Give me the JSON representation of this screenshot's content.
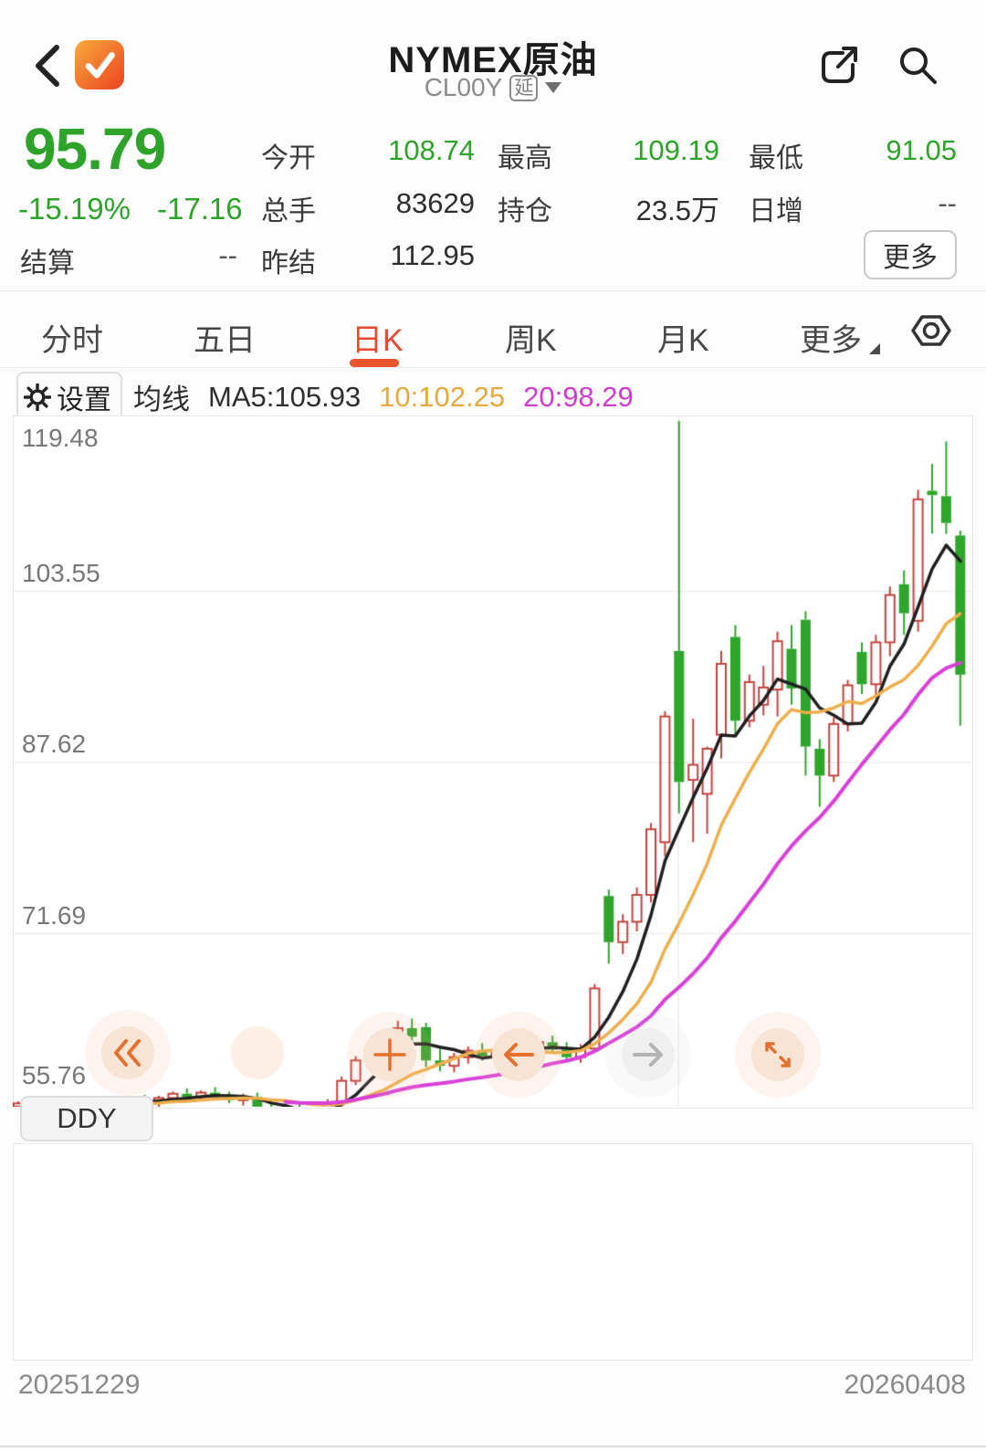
{
  "header": {
    "title": "NYMEX原油",
    "code": "CL00Y",
    "code_badge": "延",
    "icons": [
      "back-chevron",
      "app-logo-check",
      "share",
      "search"
    ]
  },
  "quote": {
    "last_price": "95.79",
    "change_percent": "-15.19%",
    "change_value": "-17.16",
    "price_color": "#2da32a",
    "fields": {
      "settle_label": "结算",
      "settle_value": "--",
      "open_label": "今开",
      "open_value": "108.74",
      "high_label": "最高",
      "high_value": "109.19",
      "low_label": "最低",
      "low_value": "91.05",
      "volume_label": "总手",
      "volume_value": "83629",
      "open_interest_label": "持仓",
      "open_interest_value": "23.5万",
      "daily_increase_label": "日增",
      "daily_increase_value": "--",
      "prev_settle_label": "昨结",
      "prev_settle_value": "112.95"
    },
    "more_button": "更多"
  },
  "tabs": {
    "items": [
      {
        "label": "分时",
        "active": false
      },
      {
        "label": "五日",
        "active": false
      },
      {
        "label": "日K",
        "active": true
      },
      {
        "label": "周K",
        "active": false
      },
      {
        "label": "月K",
        "active": false
      },
      {
        "label": "更多",
        "active": false
      }
    ],
    "active_color": "#e8492e",
    "right_icon": "hex-nut-settings"
  },
  "ma_bar": {
    "settings_button": "设置",
    "group_label": "均线",
    "ma5_text": "MA5:105.93",
    "ma10_text": "10:102.25",
    "ma20_text": "20:98.29"
  },
  "chart_data": {
    "type": "candlestick",
    "title": "NYMEX原油 日K",
    "x_start_date": "20251229",
    "x_end_date": "20260408",
    "ylim": [
      55.76,
      119.48
    ],
    "y_ticks": [
      "119.48",
      "103.55",
      "87.62",
      "71.69",
      "55.76"
    ],
    "grid": true,
    "up_style": {
      "color": "#c5433c",
      "fill": "hollow",
      "meaning": "up day (red)"
    },
    "down_style": {
      "color": "#2ea52b",
      "fill": "solid",
      "meaning": "down day (green)"
    },
    "ma_lines": [
      {
        "name": "MA5",
        "period": 5,
        "last_value": 105.93,
        "color": "#1f1f1f",
        "width": 3.5
      },
      {
        "name": "MA10",
        "period": 10,
        "last_value": 102.25,
        "color": "#efae4a",
        "width": 3.5
      },
      {
        "name": "MA20",
        "period": 20,
        "last_value": 98.29,
        "color": "#da3fda",
        "width": 4
      }
    ],
    "candle_format": [
      "open",
      "high",
      "low",
      "close"
    ],
    "candles": [
      [
        55.6,
        56.1,
        55.2,
        55.9
      ],
      [
        55.9,
        56.3,
        55.5,
        55.7
      ],
      [
        55.7,
        56.2,
        55.3,
        56.0
      ],
      [
        56.0,
        56.5,
        55.6,
        55.8
      ],
      [
        55.8,
        56.2,
        55.1,
        55.5
      ],
      [
        55.5,
        56.0,
        55.0,
        55.8
      ],
      [
        55.8,
        56.4,
        55.4,
        56.1
      ],
      [
        56.1,
        56.6,
        55.7,
        55.9
      ],
      [
        55.9,
        56.4,
        55.5,
        56.2
      ],
      [
        56.2,
        56.7,
        55.8,
        56.0
      ],
      [
        56.0,
        56.6,
        55.6,
        56.4
      ],
      [
        56.4,
        57.0,
        56.0,
        56.8
      ],
      [
        56.8,
        57.3,
        56.2,
        56.5
      ],
      [
        56.5,
        57.1,
        56.1,
        56.9
      ],
      [
        56.9,
        57.4,
        56.4,
        56.6
      ],
      [
        56.6,
        57.0,
        55.9,
        56.2
      ],
      [
        56.2,
        56.8,
        55.7,
        56.5
      ],
      [
        56.5,
        56.9,
        55.3,
        55.6
      ],
      [
        55.6,
        56.1,
        54.4,
        54.8
      ],
      [
        54.8,
        55.8,
        54.3,
        55.4
      ],
      [
        55.4,
        55.9,
        53.8,
        54.2
      ],
      [
        54.2,
        55.6,
        53.7,
        55.3
      ],
      [
        55.3,
        56.3,
        54.8,
        56.0
      ],
      [
        56.0,
        58.4,
        55.7,
        58.0
      ],
      [
        58.0,
        60.3,
        57.6,
        59.9
      ],
      [
        59.9,
        61.4,
        59.3,
        60.9
      ],
      [
        60.9,
        61.9,
        60.1,
        61.4
      ],
      [
        61.4,
        63.6,
        60.8,
        62.9
      ],
      [
        62.9,
        63.8,
        61.5,
        62.1
      ],
      [
        63.0,
        63.4,
        59.3,
        59.9
      ],
      [
        59.9,
        61.0,
        58.9,
        59.4
      ],
      [
        59.4,
        60.6,
        58.8,
        60.2
      ],
      [
        60.2,
        61.2,
        59.6,
        60.8
      ],
      [
        60.8,
        61.5,
        59.9,
        60.3
      ],
      [
        60.3,
        61.1,
        59.7,
        60.7
      ],
      [
        60.7,
        61.8,
        60.2,
        61.4
      ],
      [
        61.4,
        62.3,
        60.7,
        61.0
      ],
      [
        61.0,
        61.9,
        60.4,
        61.6
      ],
      [
        61.6,
        62.2,
        60.6,
        60.9
      ],
      [
        60.9,
        61.6,
        59.8,
        60.2
      ],
      [
        60.2,
        61.4,
        59.7,
        61.0
      ],
      [
        61.0,
        67.0,
        60.6,
        66.6
      ],
      [
        75.2,
        75.8,
        68.9,
        70.9
      ],
      [
        70.9,
        73.5,
        69.8,
        72.8
      ],
      [
        72.8,
        76.0,
        71.9,
        75.3
      ],
      [
        75.3,
        82.0,
        74.6,
        81.4
      ],
      [
        80.2,
        92.4,
        78.9,
        91.9
      ],
      [
        98.0,
        119.4,
        82.9,
        85.8
      ],
      [
        86.0,
        91.7,
        80.2,
        87.4
      ],
      [
        84.7,
        89.1,
        81.0,
        88.9
      ],
      [
        90.2,
        98.0,
        88.0,
        96.8
      ],
      [
        99.3,
        100.4,
        90.0,
        91.5
      ],
      [
        91.5,
        95.8,
        90.9,
        95.1
      ],
      [
        93.0,
        96.6,
        92.0,
        94.6
      ],
      [
        94.4,
        99.8,
        91.9,
        98.9
      ],
      [
        98.2,
        100.4,
        93.0,
        94.5
      ],
      [
        100.9,
        101.7,
        86.4,
        89.1
      ],
      [
        88.9,
        89.8,
        83.5,
        86.4
      ],
      [
        86.4,
        91.8,
        85.8,
        91.2
      ],
      [
        91.2,
        95.3,
        90.5,
        94.8
      ],
      [
        97.9,
        98.8,
        94.0,
        94.9
      ],
      [
        94.9,
        99.5,
        93.8,
        98.8
      ],
      [
        98.8,
        104.0,
        97.5,
        103.2
      ],
      [
        104.2,
        105.5,
        99.5,
        101.5
      ],
      [
        100.8,
        113.0,
        99.8,
        112.1
      ],
      [
        112.9,
        115.4,
        108.9,
        112.5
      ],
      [
        112.4,
        117.5,
        108.9,
        109.9
      ],
      [
        108.74,
        109.19,
        91.05,
        95.79
      ]
    ]
  },
  "chart_overlay_buttons": {
    "items": [
      "double-chevron-left",
      "crosshair-plus",
      "arrow-left",
      "arrow-right",
      "expand"
    ]
  },
  "sub_chart": {
    "indicator_button": "DDY"
  },
  "footer": {
    "start_date": "20251229",
    "end_date": "20260408"
  }
}
